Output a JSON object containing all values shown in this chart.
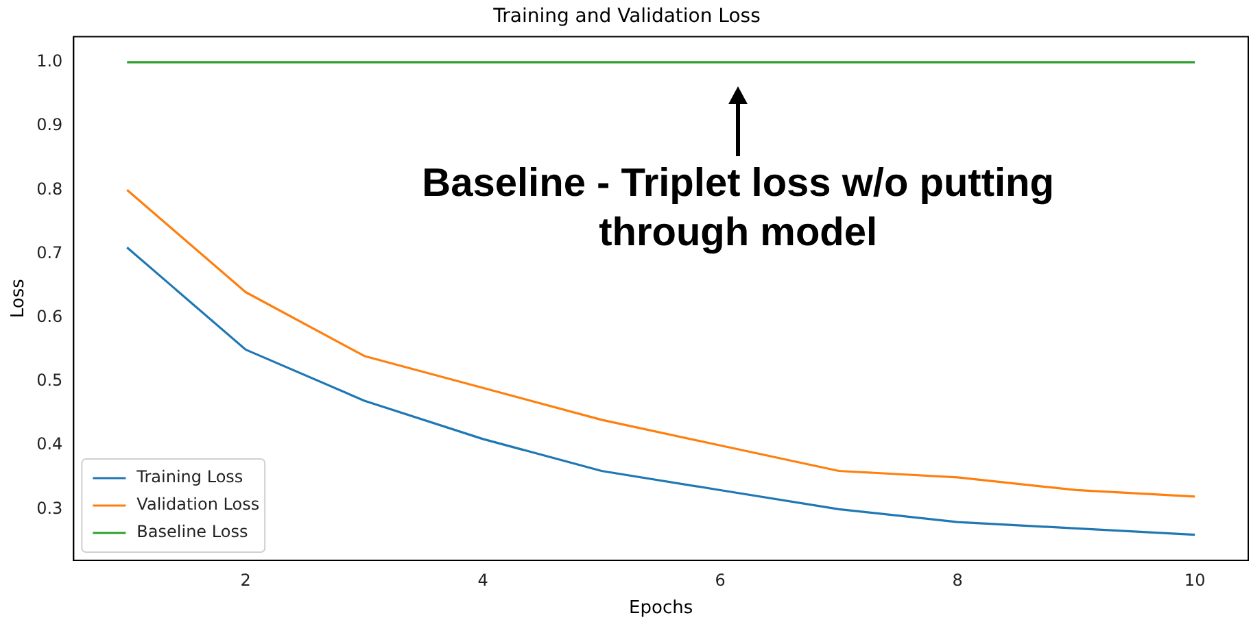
{
  "chart_data": {
    "type": "line",
    "title": "Training and Validation Loss",
    "xlabel": "Epochs",
    "ylabel": "Loss",
    "x": [
      1,
      2,
      3,
      4,
      5,
      6,
      7,
      8,
      9,
      10
    ],
    "series": [
      {
        "name": "Training Loss",
        "color": "#1f77b4",
        "values": [
          0.71,
          0.55,
          0.47,
          0.41,
          0.36,
          0.33,
          0.3,
          0.28,
          0.27,
          0.26
        ]
      },
      {
        "name": "Validation Loss",
        "color": "#ff7f0e",
        "values": [
          0.8,
          0.64,
          0.54,
          0.49,
          0.44,
          0.4,
          0.36,
          0.35,
          0.33,
          0.32
        ]
      },
      {
        "name": "Baseline Loss",
        "color": "#2ca02c",
        "values": [
          1.0,
          1.0,
          1.0,
          1.0,
          1.0,
          1.0,
          1.0,
          1.0,
          1.0,
          1.0
        ]
      }
    ],
    "annotations": [
      {
        "text": "Baseline - Triplet loss w/o putting through model",
        "x": 6.15,
        "y": 1.0
      }
    ],
    "xlim": [
      0.55,
      10.45
    ],
    "xticks": [
      2,
      4,
      6,
      8,
      10
    ],
    "ylim": [
      0.22,
      1.04
    ],
    "yticks": [
      0.3,
      0.4,
      0.5,
      0.6,
      0.7,
      0.8,
      0.9,
      {
        "value": 1.0,
        "label": "1.0"
      }
    ],
    "grid": false,
    "legend": "bottom left",
    "marker": "none",
    "line_style": "solid"
  }
}
